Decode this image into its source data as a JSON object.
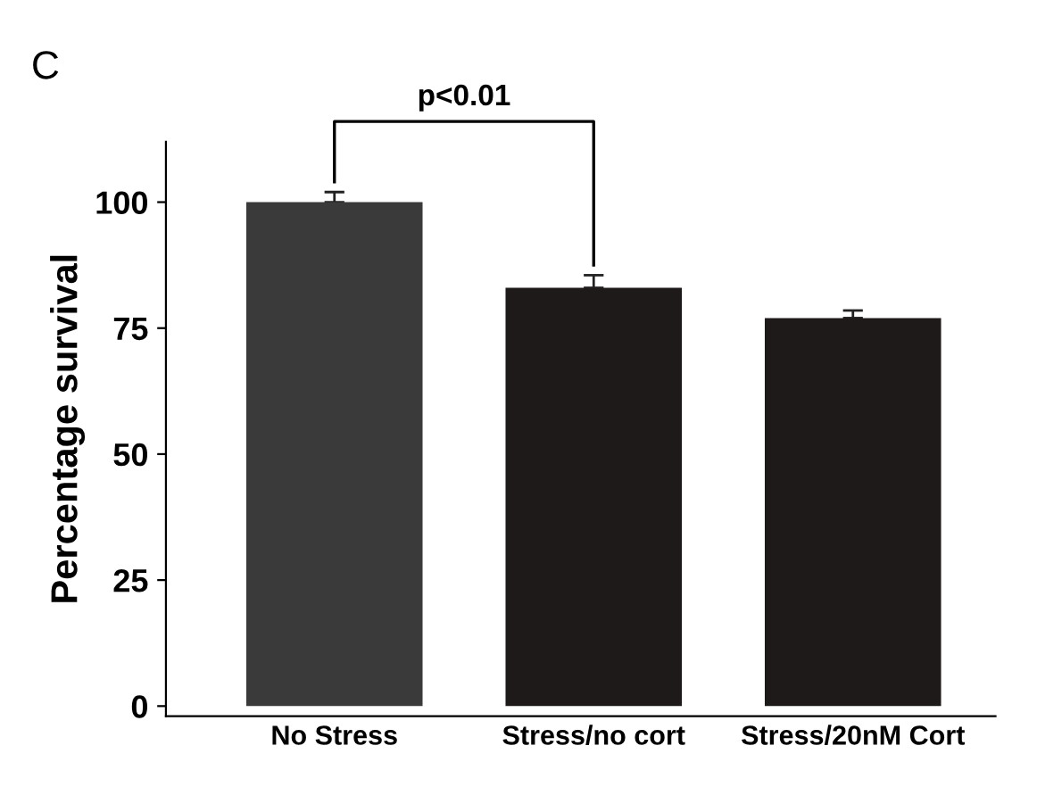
{
  "chart_data": {
    "type": "bar",
    "ylabel": "Percentage survival",
    "categories": [
      "No Stress",
      "Stress/no cort",
      "Stress/20nM Cort"
    ],
    "values": [
      100,
      83,
      77
    ],
    "errors": [
      2,
      2.5,
      1.5
    ],
    "colors": [
      "#3a3a3a",
      "#1e1a1a",
      "#1e1a1a"
    ],
    "ylim": [
      -2,
      112
    ],
    "yticks": [
      0,
      25,
      50,
      75,
      100
    ],
    "grid": false,
    "annotations": [
      "C",
      "p<0.01"
    ]
  }
}
